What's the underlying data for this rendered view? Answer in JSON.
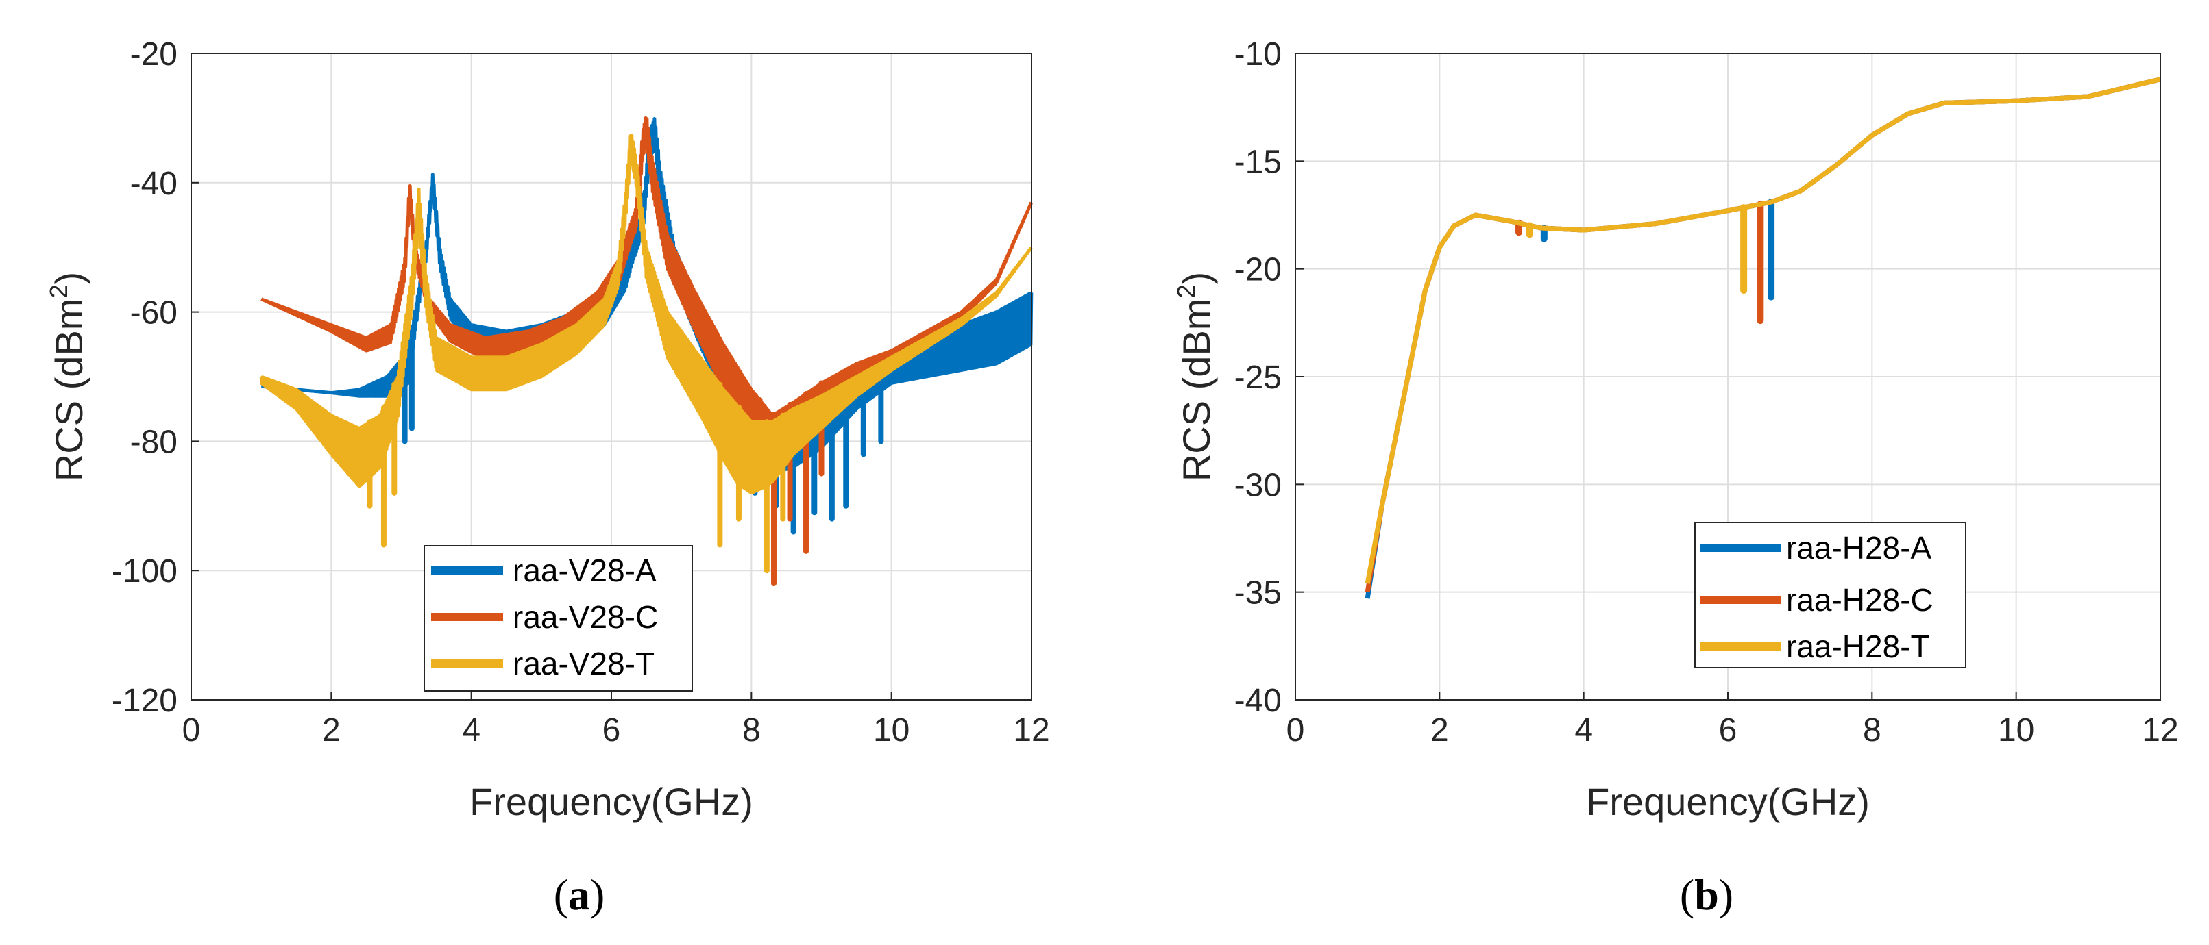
{
  "colors": {
    "blue": "#0072BD",
    "orange": "#D95319",
    "yellow": "#EDB120"
  },
  "chart_data": [
    {
      "id": "a",
      "type": "line",
      "caption": {
        "open": "(",
        "letter": "a",
        "close": ")"
      },
      "xlabel": "Frequency(GHz)",
      "ylabel_main": "RCS (dBm",
      "ylabel_sup": "2",
      "ylabel_close": ")",
      "xlim": [
        0,
        12
      ],
      "ylim": [
        -120,
        -20
      ],
      "xticks": [
        0,
        2,
        4,
        6,
        8,
        10,
        12
      ],
      "yticks": [
        -120,
        -100,
        -80,
        -60,
        -40,
        -20
      ],
      "grid": true,
      "legend_position": "bottom-center",
      "series": [
        {
          "name": "raa-V28-A",
          "color": "#0072BD",
          "points": [
            [
              1,
              -71.5
            ],
            [
              1.5,
              -72
            ],
            [
              2,
              -72.5
            ],
            [
              2.4,
              -72
            ],
            [
              2.8,
              -70
            ],
            [
              3.1,
              -66
            ],
            [
              3.35,
              -50
            ],
            [
              3.45,
              -38.5
            ],
            [
              3.55,
              -50
            ],
            [
              3.7,
              -58
            ],
            [
              4,
              -62
            ],
            [
              4.5,
              -63
            ],
            [
              5,
              -62
            ],
            [
              5.5,
              -60
            ],
            [
              5.9,
              -57
            ],
            [
              6.2,
              -53
            ],
            [
              6.45,
              -44
            ],
            [
              6.55,
              -32
            ],
            [
              6.62,
              -30
            ],
            [
              6.7,
              -38
            ],
            [
              6.9,
              -50
            ],
            [
              7.3,
              -60
            ],
            [
              7.7,
              -68
            ],
            [
              8,
              -74
            ],
            [
              8.3,
              -77
            ],
            [
              8.6,
              -76
            ],
            [
              9,
              -73
            ],
            [
              9.5,
              -69
            ],
            [
              10,
              -66
            ],
            [
              10.5,
              -64
            ],
            [
              11,
              -62
            ],
            [
              11.5,
              -60
            ],
            [
              12,
              -57
            ]
          ],
          "band": [
            [
              1,
              0
            ],
            [
              2,
              0
            ],
            [
              2.4,
              1
            ],
            [
              2.8,
              3
            ],
            [
              3.1,
              5
            ],
            [
              3.3,
              2
            ],
            [
              3.6,
              3
            ],
            [
              4,
              3
            ],
            [
              5,
              4
            ],
            [
              5.9,
              5
            ],
            [
              6.3,
              3
            ],
            [
              6.7,
              5
            ],
            [
              7.3,
              6
            ],
            [
              8,
              8
            ],
            [
              8.5,
              8
            ],
            [
              9,
              8
            ],
            [
              9.5,
              6
            ],
            [
              10,
              5
            ],
            [
              10.5,
              6
            ],
            [
              11,
              7
            ],
            [
              11.5,
              8
            ],
            [
              12,
              8
            ]
          ],
          "spikes": [
            [
              3.05,
              -80
            ],
            [
              3.15,
              -78
            ],
            [
              6.45,
              -42
            ],
            [
              8.05,
              -88
            ],
            [
              8.35,
              -90
            ],
            [
              8.6,
              -94
            ],
            [
              8.9,
              -91
            ],
            [
              9.15,
              -92
            ],
            [
              9.35,
              -90
            ],
            [
              9.6,
              -82
            ],
            [
              9.85,
              -80
            ]
          ]
        },
        {
          "name": "raa-V28-C",
          "color": "#D95319",
          "points": [
            [
              1,
              -58
            ],
            [
              1.5,
              -60
            ],
            [
              2,
              -62
            ],
            [
              2.5,
              -64
            ],
            [
              2.85,
              -62
            ],
            [
              3.05,
              -52
            ],
            [
              3.12,
              -40
            ],
            [
              3.2,
              -50
            ],
            [
              3.4,
              -58
            ],
            [
              3.7,
              -62
            ],
            [
              4.2,
              -64
            ],
            [
              4.8,
              -63
            ],
            [
              5.3,
              -61
            ],
            [
              5.8,
              -57
            ],
            [
              6.1,
              -52
            ],
            [
              6.35,
              -44
            ],
            [
              6.45,
              -32
            ],
            [
              6.5,
              -29.5
            ],
            [
              6.58,
              -36
            ],
            [
              6.8,
              -48
            ],
            [
              7.2,
              -57
            ],
            [
              7.6,
              -65
            ],
            [
              8,
              -72
            ],
            [
              8.3,
              -76
            ],
            [
              8.6,
              -74
            ],
            [
              9,
              -71
            ],
            [
              9.5,
              -68
            ],
            [
              10,
              -66
            ],
            [
              10.5,
              -63
            ],
            [
              11,
              -60
            ],
            [
              11.5,
              -55
            ],
            [
              12,
              -43
            ]
          ],
          "band": [
            [
              1,
              0
            ],
            [
              2,
              1
            ],
            [
              2.5,
              2
            ],
            [
              3,
              3
            ],
            [
              3.4,
              2
            ],
            [
              4,
              3
            ],
            [
              5,
              4
            ],
            [
              5.8,
              5
            ],
            [
              6.3,
              3
            ],
            [
              6.6,
              5
            ],
            [
              7.2,
              6
            ],
            [
              8,
              8
            ],
            [
              8.5,
              6
            ],
            [
              9,
              5
            ],
            [
              10,
              3
            ],
            [
              11,
              1
            ],
            [
              12,
              0
            ]
          ],
          "spikes": [
            [
              6.4,
              -42
            ],
            [
              8.12,
              -83
            ],
            [
              8.32,
              -102
            ],
            [
              8.55,
              -92
            ],
            [
              8.78,
              -97
            ],
            [
              9.0,
              -85
            ]
          ]
        },
        {
          "name": "raa-V28-T",
          "color": "#EDB120",
          "points": [
            [
              1,
              -70
            ],
            [
              1.5,
              -72
            ],
            [
              2,
              -76
            ],
            [
              2.4,
              -78
            ],
            [
              2.7,
              -76
            ],
            [
              2.95,
              -70
            ],
            [
              3.15,
              -54
            ],
            [
              3.25,
              -41
            ],
            [
              3.35,
              -54
            ],
            [
              3.5,
              -64
            ],
            [
              4,
              -67
            ],
            [
              4.5,
              -67
            ],
            [
              5,
              -65
            ],
            [
              5.5,
              -62
            ],
            [
              5.9,
              -58
            ],
            [
              6.1,
              -52
            ],
            [
              6.2,
              -42
            ],
            [
              6.28,
              -32
            ],
            [
              6.35,
              -36
            ],
            [
              6.5,
              -50
            ],
            [
              6.8,
              -60
            ],
            [
              7.2,
              -66
            ],
            [
              7.6,
              -72
            ],
            [
              8,
              -77
            ],
            [
              8.3,
              -77
            ],
            [
              8.6,
              -75
            ],
            [
              9,
              -73
            ],
            [
              9.5,
              -70
            ],
            [
              10,
              -67
            ],
            [
              10.5,
              -64
            ],
            [
              11,
              -61
            ],
            [
              11.5,
              -57
            ],
            [
              12,
              -50
            ]
          ],
          "band": [
            [
              1,
              1
            ],
            [
              1.5,
              3
            ],
            [
              2,
              6
            ],
            [
              2.4,
              9
            ],
            [
              2.7,
              8
            ],
            [
              3.0,
              6
            ],
            [
              3.5,
              5
            ],
            [
              4,
              5
            ],
            [
              5,
              5
            ],
            [
              5.9,
              4
            ],
            [
              6.4,
              4
            ],
            [
              6.8,
              7
            ],
            [
              7.3,
              9
            ],
            [
              7.8,
              12
            ],
            [
              8.2,
              10
            ],
            [
              8.6,
              7
            ],
            [
              9,
              5
            ],
            [
              9.5,
              3
            ],
            [
              10,
              2
            ],
            [
              11,
              1
            ],
            [
              12,
              0
            ]
          ],
          "spikes": [
            [
              2.55,
              -90
            ],
            [
              2.75,
              -96
            ],
            [
              2.9,
              -88
            ],
            [
              7.55,
              -96
            ],
            [
              7.82,
              -92
            ],
            [
              8.22,
              -100
            ],
            [
              8.45,
              -92
            ]
          ]
        }
      ]
    },
    {
      "id": "b",
      "type": "line",
      "caption": {
        "open": "(",
        "letter": "b",
        "close": ")"
      },
      "xlabel": "Frequency(GHz)",
      "ylabel_main": "RCS (dBm",
      "ylabel_sup": "2",
      "ylabel_close": ")",
      "xlim": [
        0,
        12
      ],
      "ylim": [
        -40,
        -10
      ],
      "xticks": [
        0,
        2,
        4,
        6,
        8,
        10,
        12
      ],
      "yticks": [
        -40,
        -35,
        -30,
        -25,
        -20,
        -15,
        -10
      ],
      "grid": true,
      "legend_position": "bottom-center",
      "series": [
        {
          "name": "raa-H28-A",
          "color": "#0072BD",
          "points": [
            [
              1.0,
              -35.3
            ],
            [
              1.2,
              -31
            ],
            [
              1.5,
              -26
            ],
            [
              1.8,
              -21
            ],
            [
              2.0,
              -19
            ],
            [
              2.2,
              -18
            ],
            [
              2.5,
              -17.5
            ],
            [
              3.0,
              -17.8
            ],
            [
              3.4,
              -18.1
            ],
            [
              4.0,
              -18.2
            ],
            [
              5.0,
              -17.9
            ],
            [
              6.0,
              -17.3
            ],
            [
              6.6,
              -16.9
            ],
            [
              7.0,
              -16.4
            ],
            [
              7.5,
              -15.2
            ],
            [
              8.0,
              -13.8
            ],
            [
              8.5,
              -12.8
            ],
            [
              9.0,
              -12.3
            ],
            [
              10.0,
              -12.2
            ],
            [
              11.0,
              -12.0
            ],
            [
              12.0,
              -11.2
            ]
          ],
          "band": [],
          "spikes": [
            [
              3.45,
              -18.6
            ],
            [
              6.6,
              -21.3
            ]
          ]
        },
        {
          "name": "raa-H28-C",
          "color": "#D95319",
          "points": [
            [
              1.0,
              -35.0
            ],
            [
              1.2,
              -31
            ],
            [
              1.5,
              -26
            ],
            [
              1.8,
              -21
            ],
            [
              2.0,
              -19
            ],
            [
              2.2,
              -18
            ],
            [
              2.5,
              -17.5
            ],
            [
              3.0,
              -17.8
            ],
            [
              3.4,
              -18.1
            ],
            [
              4.0,
              -18.2
            ],
            [
              5.0,
              -17.9
            ],
            [
              6.0,
              -17.3
            ],
            [
              6.6,
              -16.9
            ],
            [
              7.0,
              -16.4
            ],
            [
              7.5,
              -15.2
            ],
            [
              8.0,
              -13.8
            ],
            [
              8.5,
              -12.8
            ],
            [
              9.0,
              -12.3
            ],
            [
              10.0,
              -12.2
            ],
            [
              11.0,
              -12.0
            ],
            [
              12.0,
              -11.2
            ]
          ],
          "band": [],
          "spikes": [
            [
              3.1,
              -18.3
            ],
            [
              6.45,
              -22.4
            ]
          ]
        },
        {
          "name": "raa-H28-T",
          "color": "#EDB120",
          "points": [
            [
              1.0,
              -34.6
            ],
            [
              1.2,
              -31
            ],
            [
              1.5,
              -26
            ],
            [
              1.8,
              -21
            ],
            [
              2.0,
              -19
            ],
            [
              2.2,
              -18
            ],
            [
              2.5,
              -17.5
            ],
            [
              3.0,
              -17.8
            ],
            [
              3.4,
              -18.1
            ],
            [
              4.0,
              -18.2
            ],
            [
              5.0,
              -17.9
            ],
            [
              6.0,
              -17.3
            ],
            [
              6.6,
              -16.9
            ],
            [
              7.0,
              -16.4
            ],
            [
              7.5,
              -15.2
            ],
            [
              8.0,
              -13.8
            ],
            [
              8.5,
              -12.8
            ],
            [
              9.0,
              -12.3
            ],
            [
              10.0,
              -12.2
            ],
            [
              11.0,
              -12.0
            ],
            [
              12.0,
              -11.2
            ]
          ],
          "band": [],
          "spikes": [
            [
              3.25,
              -18.4
            ],
            [
              6.22,
              -21.0
            ]
          ]
        }
      ]
    }
  ]
}
